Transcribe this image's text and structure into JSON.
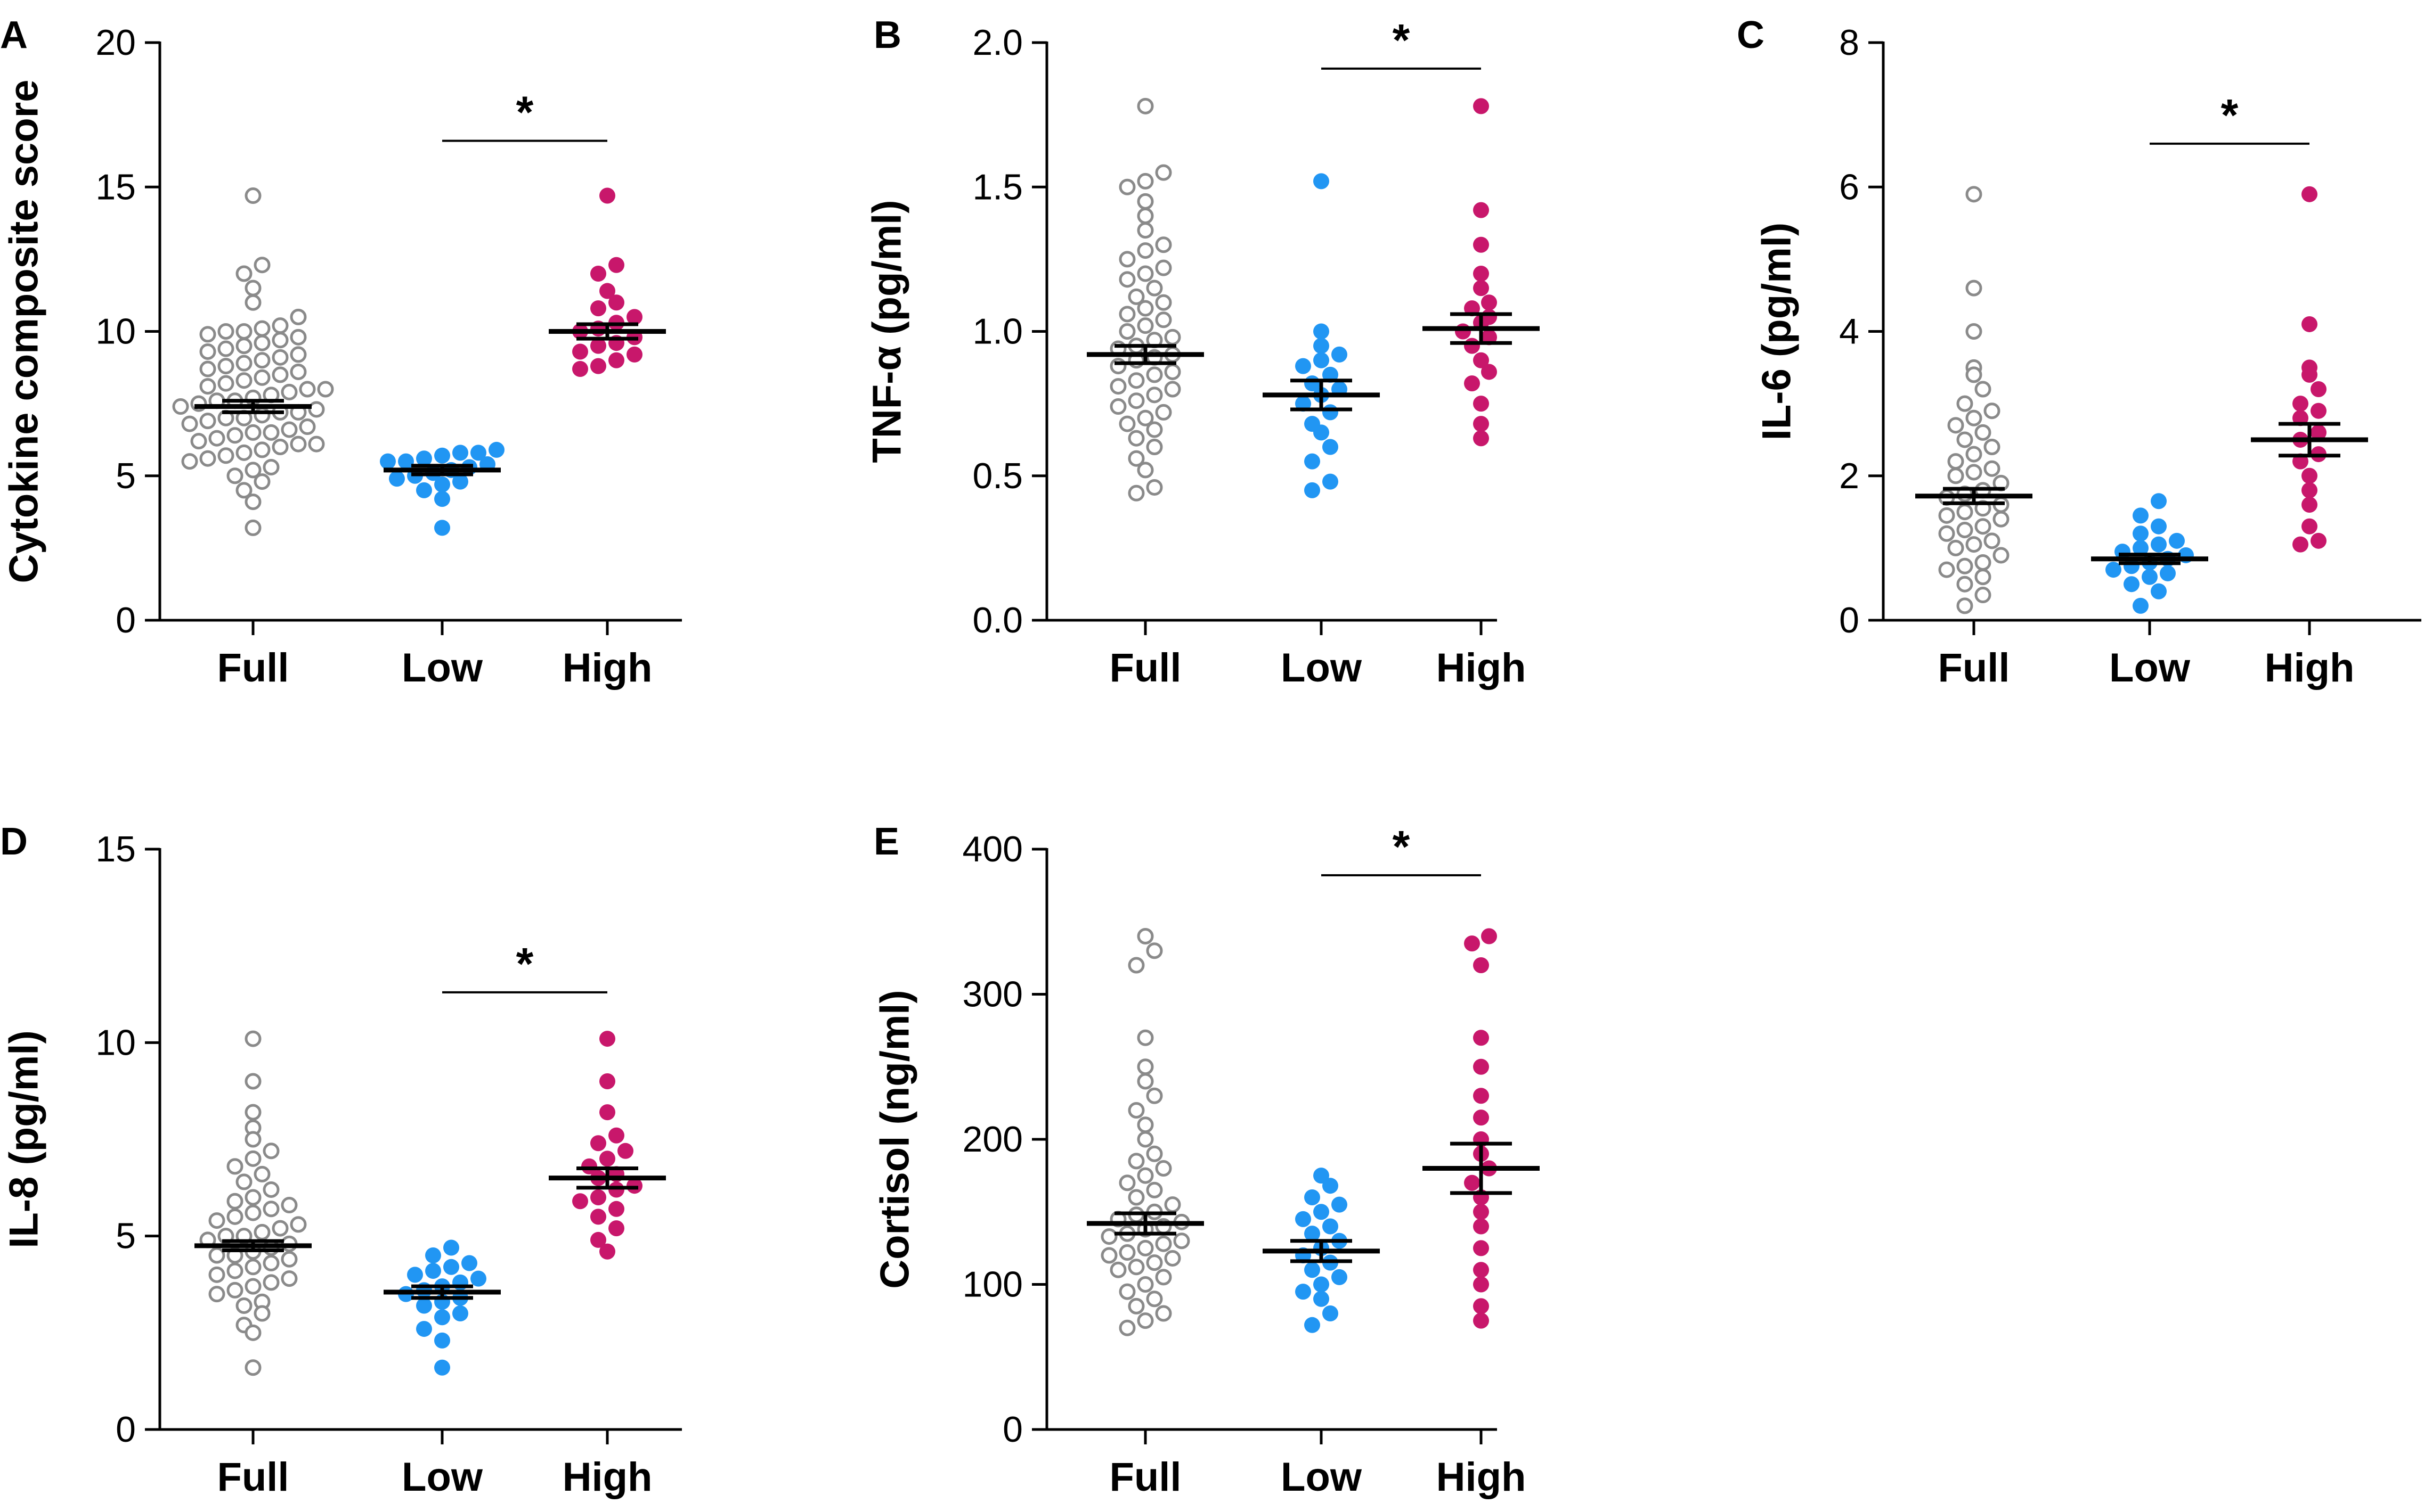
{
  "colors": {
    "full": "#8a8a8a",
    "low": "#2196f3",
    "high": "#c8176b",
    "axis": "#000000"
  },
  "chart_data": [
    {
      "panel": "A",
      "type": "scatter",
      "ylabel": "Cytokine composite score",
      "ylim": [
        0,
        20
      ],
      "yticks": [
        0,
        5,
        10,
        15,
        20
      ],
      "categories": [
        "Full",
        "Low",
        "High"
      ],
      "series": [
        {
          "name": "Full",
          "marker": "open",
          "mean": 7.4,
          "sem": 0.2,
          "values": [
            3.2,
            4.1,
            4.5,
            4.8,
            5.0,
            5.2,
            5.3,
            5.5,
            5.6,
            5.7,
            5.8,
            5.9,
            6.0,
            6.1,
            6.1,
            6.2,
            6.3,
            6.4,
            6.5,
            6.5,
            6.6,
            6.7,
            6.8,
            6.9,
            7.0,
            7.0,
            7.1,
            7.2,
            7.2,
            7.3,
            7.4,
            7.5,
            7.6,
            7.6,
            7.7,
            7.8,
            7.9,
            8.0,
            8.0,
            8.1,
            8.2,
            8.3,
            8.4,
            8.5,
            8.6,
            8.7,
            8.8,
            8.9,
            9.0,
            9.1,
            9.2,
            9.3,
            9.4,
            9.5,
            9.6,
            9.7,
            9.8,
            9.9,
            10.0,
            10.0,
            10.1,
            10.2,
            10.5,
            11.0,
            11.5,
            12.0,
            12.3,
            14.7
          ]
        },
        {
          "name": "Low",
          "marker": "filled",
          "mean": 5.2,
          "sem": 0.15,
          "values": [
            3.2,
            4.2,
            4.5,
            4.7,
            4.8,
            4.9,
            5.0,
            5.1,
            5.2,
            5.3,
            5.4,
            5.5,
            5.5,
            5.6,
            5.7,
            5.8,
            5.8,
            5.9
          ]
        },
        {
          "name": "High",
          "marker": "filled",
          "mean": 10.0,
          "sem": 0.25,
          "values": [
            8.7,
            8.8,
            9.0,
            9.2,
            9.3,
            9.5,
            9.6,
            9.8,
            10.0,
            10.1,
            10.3,
            10.5,
            10.8,
            11.0,
            11.4,
            12.0,
            12.3,
            14.7
          ]
        }
      ],
      "significance": {
        "label": "*",
        "from": "Low",
        "to": "High",
        "y": 16.6
      }
    },
    {
      "panel": "B",
      "type": "scatter",
      "ylabel": "TNF-α (pg/ml)",
      "ylim": [
        0.0,
        2.0
      ],
      "yticks": [
        "0.0",
        "0.5",
        "1.0",
        "1.5",
        "2.0"
      ],
      "categories": [
        "Full",
        "Low",
        "High"
      ],
      "series": [
        {
          "name": "Full",
          "marker": "open",
          "mean": 0.92,
          "sem": 0.03,
          "values": [
            0.44,
            0.46,
            0.52,
            0.56,
            0.6,
            0.63,
            0.66,
            0.68,
            0.7,
            0.72,
            0.74,
            0.76,
            0.78,
            0.8,
            0.81,
            0.83,
            0.85,
            0.86,
            0.88,
            0.9,
            0.91,
            0.92,
            0.94,
            0.95,
            0.97,
            0.98,
            1.0,
            1.02,
            1.04,
            1.06,
            1.08,
            1.1,
            1.12,
            1.15,
            1.18,
            1.2,
            1.22,
            1.25,
            1.28,
            1.3,
            1.35,
            1.4,
            1.45,
            1.5,
            1.52,
            1.55,
            1.78
          ]
        },
        {
          "name": "Low",
          "marker": "filled",
          "mean": 0.78,
          "sem": 0.05,
          "values": [
            0.45,
            0.48,
            0.55,
            0.6,
            0.65,
            0.68,
            0.72,
            0.75,
            0.78,
            0.8,
            0.82,
            0.85,
            0.88,
            0.9,
            0.92,
            0.95,
            1.0,
            1.52
          ]
        },
        {
          "name": "High",
          "marker": "filled",
          "mean": 1.01,
          "sem": 0.05,
          "values": [
            0.63,
            0.68,
            0.75,
            0.82,
            0.86,
            0.9,
            0.95,
            0.98,
            1.0,
            1.03,
            1.05,
            1.08,
            1.1,
            1.15,
            1.2,
            1.3,
            1.42,
            1.78
          ]
        }
      ],
      "significance": {
        "label": "*",
        "from": "Low",
        "to": "High",
        "y": 1.91
      }
    },
    {
      "panel": "C",
      "type": "scatter",
      "ylabel": "IL-6 (pg/ml)",
      "ylim": [
        0,
        8
      ],
      "yticks": [
        0,
        2,
        4,
        6,
        8
      ],
      "categories": [
        "Full",
        "Low",
        "High"
      ],
      "series": [
        {
          "name": "Full",
          "marker": "open",
          "mean": 1.72,
          "sem": 0.1,
          "values": [
            0.2,
            0.35,
            0.5,
            0.6,
            0.7,
            0.75,
            0.8,
            0.9,
            1.0,
            1.05,
            1.1,
            1.2,
            1.25,
            1.3,
            1.4,
            1.45,
            1.5,
            1.55,
            1.6,
            1.7,
            1.75,
            1.8,
            1.9,
            2.0,
            2.05,
            2.1,
            2.2,
            2.3,
            2.4,
            2.5,
            2.6,
            2.7,
            2.8,
            2.9,
            3.0,
            3.2,
            3.4,
            3.5,
            4.0,
            4.6,
            5.9
          ]
        },
        {
          "name": "Low",
          "marker": "filled",
          "mean": 0.85,
          "sem": 0.06,
          "values": [
            0.2,
            0.4,
            0.5,
            0.6,
            0.65,
            0.7,
            0.75,
            0.8,
            0.85,
            0.9,
            0.95,
            1.0,
            1.05,
            1.1,
            1.2,
            1.3,
            1.45,
            1.65
          ]
        },
        {
          "name": "High",
          "marker": "filled",
          "mean": 2.5,
          "sem": 0.22,
          "values": [
            1.05,
            1.1,
            1.3,
            1.6,
            1.8,
            2.0,
            2.2,
            2.3,
            2.5,
            2.6,
            2.8,
            2.9,
            3.0,
            3.2,
            3.4,
            3.5,
            4.1,
            5.9
          ]
        }
      ],
      "significance": {
        "label": "*",
        "from": "Low",
        "to": "High",
        "y": 6.6
      }
    },
    {
      "panel": "D",
      "type": "scatter",
      "ylabel": "IL-8 (pg/ml)",
      "ylim": [
        0,
        15
      ],
      "yticks": [
        0,
        5,
        10,
        15
      ],
      "categories": [
        "Full",
        "Low",
        "High"
      ],
      "series": [
        {
          "name": "Full",
          "marker": "open",
          "mean": 4.75,
          "sem": 0.12,
          "values": [
            1.6,
            2.5,
            2.7,
            3.0,
            3.2,
            3.3,
            3.5,
            3.6,
            3.7,
            3.8,
            3.9,
            4.0,
            4.1,
            4.2,
            4.3,
            4.4,
            4.5,
            4.5,
            4.6,
            4.7,
            4.8,
            4.9,
            5.0,
            5.0,
            5.1,
            5.2,
            5.3,
            5.4,
            5.5,
            5.6,
            5.7,
            5.8,
            5.9,
            6.0,
            6.2,
            6.4,
            6.6,
            6.8,
            7.0,
            7.2,
            7.5,
            7.8,
            8.2,
            9.0,
            10.1
          ]
        },
        {
          "name": "Low",
          "marker": "filled",
          "mean": 3.55,
          "sem": 0.15,
          "values": [
            1.6,
            2.3,
            2.6,
            2.9,
            3.0,
            3.2,
            3.3,
            3.4,
            3.5,
            3.6,
            3.7,
            3.8,
            3.9,
            4.0,
            4.1,
            4.2,
            4.3,
            4.5,
            4.7
          ]
        },
        {
          "name": "High",
          "marker": "filled",
          "mean": 6.5,
          "sem": 0.25,
          "values": [
            4.6,
            4.9,
            5.2,
            5.5,
            5.7,
            5.9,
            6.0,
            6.2,
            6.3,
            6.5,
            6.6,
            6.8,
            7.0,
            7.2,
            7.4,
            7.6,
            8.2,
            9.0,
            10.1
          ]
        }
      ],
      "significance": {
        "label": "*",
        "from": "Low",
        "to": "High",
        "y": 11.3
      }
    },
    {
      "panel": "E",
      "type": "scatter",
      "ylabel": "Cortisol (ng/ml)",
      "ylim": [
        0,
        400
      ],
      "yticks": [
        0,
        100,
        200,
        300,
        400
      ],
      "categories": [
        "Full",
        "Low",
        "High"
      ],
      "series": [
        {
          "name": "Full",
          "marker": "open",
          "mean": 142,
          "sem": 7,
          "values": [
            70,
            75,
            80,
            85,
            90,
            95,
            100,
            105,
            110,
            112,
            115,
            118,
            120,
            122,
            125,
            128,
            130,
            133,
            135,
            138,
            140,
            143,
            145,
            148,
            150,
            155,
            160,
            165,
            170,
            175,
            180,
            185,
            190,
            200,
            210,
            220,
            230,
            240,
            250,
            270,
            320,
            330,
            340
          ]
        },
        {
          "name": "Low",
          "marker": "filled",
          "mean": 123,
          "sem": 7,
          "values": [
            72,
            80,
            90,
            95,
            100,
            105,
            110,
            115,
            120,
            125,
            130,
            135,
            140,
            145,
            150,
            155,
            160,
            168,
            175
          ]
        },
        {
          "name": "High",
          "marker": "filled",
          "mean": 180,
          "sem": 17,
          "values": [
            75,
            85,
            100,
            110,
            125,
            140,
            150,
            160,
            170,
            180,
            190,
            200,
            215,
            230,
            250,
            270,
            320,
            335,
            340
          ]
        }
      ],
      "significance": {
        "label": "*",
        "from": "Low",
        "to": "High",
        "y": 382
      }
    }
  ]
}
